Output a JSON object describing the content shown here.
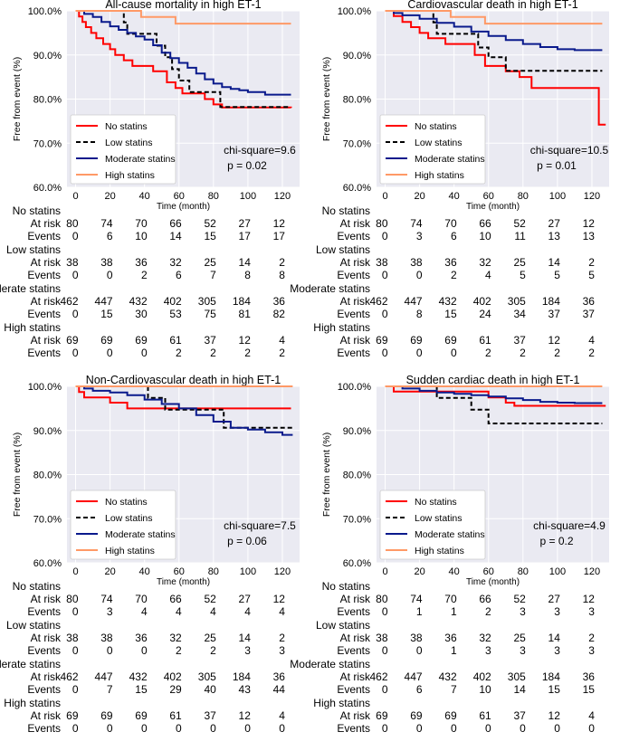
{
  "colors": {
    "no_statins": "#ff0000",
    "low_statins": "#000000",
    "moderate_statins": "#0a1a8c",
    "high_statins": "#ff9966",
    "plot_background": "#eaeaf2",
    "grid": "#ffffff"
  },
  "common": {
    "xlabel": "Time (month)",
    "ylabel": "Free from event (%)",
    "xticks": [
      0,
      20,
      40,
      60,
      80,
      100,
      120
    ],
    "xlim": [
      -5,
      130
    ],
    "risk_times": [
      0,
      20,
      40,
      60,
      80,
      100,
      120
    ],
    "row_labels": {
      "at_risk": "At risk",
      "events": "Events"
    },
    "legend": [
      "No statins",
      "Low statins",
      "Moderate statins",
      "High statins"
    ]
  },
  "chart_data": [
    {
      "type": "line",
      "title": "All-cause mortality in high ET-1",
      "ylim": [
        60,
        100
      ],
      "yticks": [
        60,
        70,
        80,
        90,
        100
      ],
      "ytick_labels": [
        "60.0%",
        "70.0%",
        "80.0%",
        "90.0%",
        "100.0%"
      ],
      "stat_text": "chi-square=9.6",
      "p_text": "p = 0.02",
      "series": [
        {
          "name": "No statins",
          "key": "no",
          "dash": false,
          "x": [
            0,
            2,
            4,
            6,
            9,
            12,
            16,
            20,
            23,
            28,
            33,
            37,
            40,
            45,
            53,
            58,
            62,
            68,
            75,
            80,
            85,
            100,
            125
          ],
          "y": [
            100,
            98.7,
            97.5,
            96.3,
            95,
            93.8,
            92.5,
            91.3,
            90,
            88.8,
            87.5,
            87.5,
            87.5,
            86.3,
            83.8,
            82.5,
            81.3,
            81.3,
            80,
            78.8,
            78.1,
            78.1,
            78
          ]
        },
        {
          "name": "Low statins",
          "key": "low",
          "dash": true,
          "x": [
            0,
            28,
            30,
            42,
            47,
            52,
            56,
            60,
            66,
            82,
            84,
            124
          ],
          "y": [
            100,
            97.4,
            94.8,
            94.8,
            92.1,
            89.5,
            86.8,
            84.2,
            81.6,
            81.6,
            78.2,
            78.2
          ]
        },
        {
          "name": "Moderate statins",
          "key": "moderate",
          "dash": false,
          "x": [
            0,
            5,
            10,
            15,
            20,
            25,
            30,
            35,
            40,
            45,
            50,
            55,
            60,
            65,
            70,
            75,
            80,
            85,
            90,
            95,
            100,
            110,
            120,
            125
          ],
          "y": [
            100,
            99.3,
            98.6,
            97.5,
            96.5,
            95.7,
            95,
            94.2,
            93.5,
            92.2,
            90.5,
            89.3,
            88.2,
            87.1,
            85.8,
            84.5,
            83.5,
            82.7,
            82.3,
            82,
            81.6,
            81,
            81,
            81
          ]
        },
        {
          "name": "High statins",
          "key": "high",
          "dash": false,
          "x": [
            0,
            35,
            38,
            55,
            58,
            125
          ],
          "y": [
            100,
            100,
            98.6,
            98.6,
            97.1,
            97.1
          ]
        }
      ],
      "risk_groups": [
        {
          "label": "No statins",
          "at_risk": [
            80,
            74,
            70,
            66,
            52,
            27,
            12
          ],
          "events": [
            0,
            6,
            10,
            14,
            15,
            17,
            17
          ]
        },
        {
          "label": "Low statins",
          "at_risk": [
            38,
            38,
            36,
            32,
            25,
            14,
            2
          ],
          "events": [
            0,
            0,
            2,
            6,
            7,
            8,
            8
          ]
        },
        {
          "label": "Moderate statins",
          "at_risk": [
            462,
            447,
            432,
            402,
            305,
            184,
            36
          ],
          "events": [
            0,
            15,
            30,
            53,
            75,
            81,
            82
          ]
        },
        {
          "label": "High statins",
          "at_risk": [
            69,
            69,
            69,
            61,
            37,
            12,
            4
          ],
          "events": [
            0,
            0,
            0,
            2,
            2,
            2,
            2
          ]
        }
      ]
    },
    {
      "type": "line",
      "title": "Cardiovascular death in high ET-1",
      "ylim": [
        60,
        100
      ],
      "yticks": [
        60,
        70,
        80,
        90,
        100
      ],
      "ytick_labels": [
        "60.0%",
        "70.0%",
        "80.0%",
        "90.0%",
        "100.0%"
      ],
      "stat_text": "chi-square=10.5",
      "p_text": "p = 0.01",
      "series": [
        {
          "name": "No statins",
          "key": "no",
          "dash": false,
          "x": [
            0,
            5,
            10,
            15,
            20,
            25,
            30,
            35,
            40,
            52,
            58,
            62,
            70,
            78,
            85,
            95,
            120,
            124,
            128
          ],
          "y": [
            100,
            98.8,
            97.5,
            96.3,
            95,
            93.8,
            93.8,
            92.5,
            92.5,
            90,
            87.5,
            87.5,
            86.3,
            85,
            82.5,
            82.5,
            82.5,
            74.2,
            74.2
          ]
        },
        {
          "name": "Low statins",
          "key": "low",
          "dash": true,
          "x": [
            0,
            28,
            30,
            48,
            54,
            60,
            70,
            126
          ],
          "y": [
            100,
            97.4,
            94.8,
            94.8,
            91.7,
            89.5,
            86.4,
            86.4
          ]
        },
        {
          "name": "Moderate statins",
          "key": "moderate",
          "dash": false,
          "x": [
            0,
            5,
            10,
            20,
            30,
            40,
            50,
            60,
            70,
            80,
            90,
            100,
            110,
            126
          ],
          "y": [
            100,
            99.5,
            99,
            98.2,
            97.3,
            96.4,
            95.3,
            94.3,
            93.4,
            92.5,
            91.8,
            91.3,
            91.1,
            91.1
          ]
        },
        {
          "name": "High statins",
          "key": "high",
          "dash": false,
          "x": [
            0,
            35,
            38,
            55,
            58,
            126
          ],
          "y": [
            100,
            100,
            98.6,
            98.6,
            97.1,
            97.1
          ]
        }
      ],
      "risk_groups": [
        {
          "label": "No statins",
          "at_risk": [
            80,
            74,
            70,
            66,
            52,
            27,
            12
          ],
          "events": [
            0,
            3,
            6,
            10,
            11,
            13,
            13
          ]
        },
        {
          "label": "Low statins",
          "at_risk": [
            38,
            38,
            36,
            32,
            25,
            14,
            2
          ],
          "events": [
            0,
            0,
            2,
            4,
            5,
            5,
            5
          ]
        },
        {
          "label": "Moderate statins",
          "at_risk": [
            462,
            447,
            432,
            402,
            305,
            184,
            36
          ],
          "events": [
            0,
            8,
            15,
            24,
            34,
            37,
            37
          ]
        },
        {
          "label": "High statins",
          "at_risk": [
            69,
            69,
            69,
            61,
            37,
            12,
            4
          ],
          "events": [
            0,
            0,
            0,
            2,
            2,
            2,
            2
          ]
        }
      ]
    },
    {
      "type": "line",
      "title": "Non-Cardiovascular death  in high ET-1",
      "ylim": [
        60,
        100
      ],
      "yticks": [
        60,
        70,
        80,
        90,
        100
      ],
      "ytick_labels": [
        "60.0%",
        "70.0%",
        "80.0%",
        "90.0%",
        "100.0%"
      ],
      "stat_text": "chi-square=7.5",
      "p_text": "p = 0.06",
      "series": [
        {
          "name": "No statins",
          "key": "no",
          "dash": false,
          "x": [
            0,
            2,
            5,
            20,
            30,
            125
          ],
          "y": [
            100,
            98.7,
            97.5,
            96.3,
            95,
            95
          ]
        },
        {
          "name": "Low statins",
          "key": "low",
          "dash": true,
          "x": [
            0,
            40,
            42,
            52,
            84,
            86,
            126
          ],
          "y": [
            100,
            100,
            97.4,
            94.7,
            94.7,
            90.6,
            90.6
          ]
        },
        {
          "name": "Moderate statins",
          "key": "moderate",
          "dash": false,
          "x": [
            0,
            5,
            10,
            20,
            30,
            40,
            50,
            60,
            70,
            80,
            90,
            100,
            110,
            120,
            126
          ],
          "y": [
            100,
            99.5,
            99,
            98.6,
            98,
            97,
            96,
            95,
            93.5,
            92,
            90.6,
            90.2,
            89.6,
            89,
            89
          ]
        },
        {
          "name": "High statins",
          "key": "high",
          "dash": false,
          "x": [
            0,
            126
          ],
          "y": [
            100,
            100
          ]
        }
      ],
      "risk_groups": [
        {
          "label": "No statins",
          "at_risk": [
            80,
            74,
            70,
            66,
            52,
            27,
            12
          ],
          "events": [
            0,
            3,
            4,
            4,
            4,
            4,
            4
          ]
        },
        {
          "label": "Low statins",
          "at_risk": [
            38,
            38,
            36,
            32,
            25,
            14,
            2
          ],
          "events": [
            0,
            0,
            0,
            2,
            2,
            3,
            3
          ]
        },
        {
          "label": "Moderate statins",
          "at_risk": [
            462,
            447,
            432,
            402,
            305,
            184,
            36
          ],
          "events": [
            0,
            7,
            15,
            29,
            40,
            43,
            44
          ]
        },
        {
          "label": "High statins",
          "at_risk": [
            69,
            69,
            69,
            61,
            37,
            12,
            4
          ],
          "events": [
            0,
            0,
            0,
            0,
            0,
            0,
            0
          ]
        }
      ]
    },
    {
      "type": "line",
      "title": "Sudden cardiac death  in high ET-1",
      "ylim": [
        60,
        100
      ],
      "yticks": [
        60,
        70,
        80,
        90,
        100
      ],
      "ytick_labels": [
        "60.0%",
        "70.0%",
        "80.0%",
        "90.0%",
        "100.0%"
      ],
      "stat_text": "chi-square=4.9",
      "p_text": "p = 0.2",
      "series": [
        {
          "name": "No statins",
          "key": "no",
          "dash": false,
          "x": [
            0,
            5,
            20,
            60,
            70,
            75,
            128
          ],
          "y": [
            100,
            98.8,
            98.8,
            97.5,
            96.3,
            95.6,
            95.6
          ]
        },
        {
          "name": "Low statins",
          "key": "low",
          "dash": true,
          "x": [
            0,
            28,
            30,
            48,
            50,
            58,
            60,
            126
          ],
          "y": [
            100,
            100,
            97.4,
            97.4,
            94.7,
            94.7,
            91.6,
            91.6
          ]
        },
        {
          "name": "Moderate statins",
          "key": "moderate",
          "dash": false,
          "x": [
            0,
            10,
            20,
            30,
            40,
            50,
            60,
            70,
            80,
            90,
            100,
            110,
            126
          ],
          "y": [
            100,
            99.5,
            99,
            98.6,
            98.3,
            98,
            97.7,
            97.3,
            96.9,
            96.5,
            96.3,
            96.2,
            96.2
          ]
        },
        {
          "name": "High statins",
          "key": "high",
          "dash": false,
          "x": [
            0,
            126
          ],
          "y": [
            100,
            100
          ]
        }
      ],
      "risk_groups": [
        {
          "label": "No statins",
          "at_risk": [
            80,
            74,
            70,
            66,
            52,
            27,
            12
          ],
          "events": [
            0,
            1,
            1,
            2,
            3,
            3,
            3
          ]
        },
        {
          "label": "Low statins",
          "at_risk": [
            38,
            38,
            36,
            32,
            25,
            14,
            2
          ],
          "events": [
            0,
            0,
            1,
            3,
            3,
            3,
            3
          ]
        },
        {
          "label": "Moderate statins",
          "at_risk": [
            462,
            447,
            432,
            402,
            305,
            184,
            36
          ],
          "events": [
            0,
            6,
            7,
            10,
            14,
            15,
            15
          ]
        },
        {
          "label": "High statins",
          "at_risk": [
            69,
            69,
            69,
            61,
            37,
            12,
            4
          ],
          "events": [
            0,
            0,
            0,
            0,
            0,
            0,
            0
          ]
        }
      ]
    }
  ]
}
